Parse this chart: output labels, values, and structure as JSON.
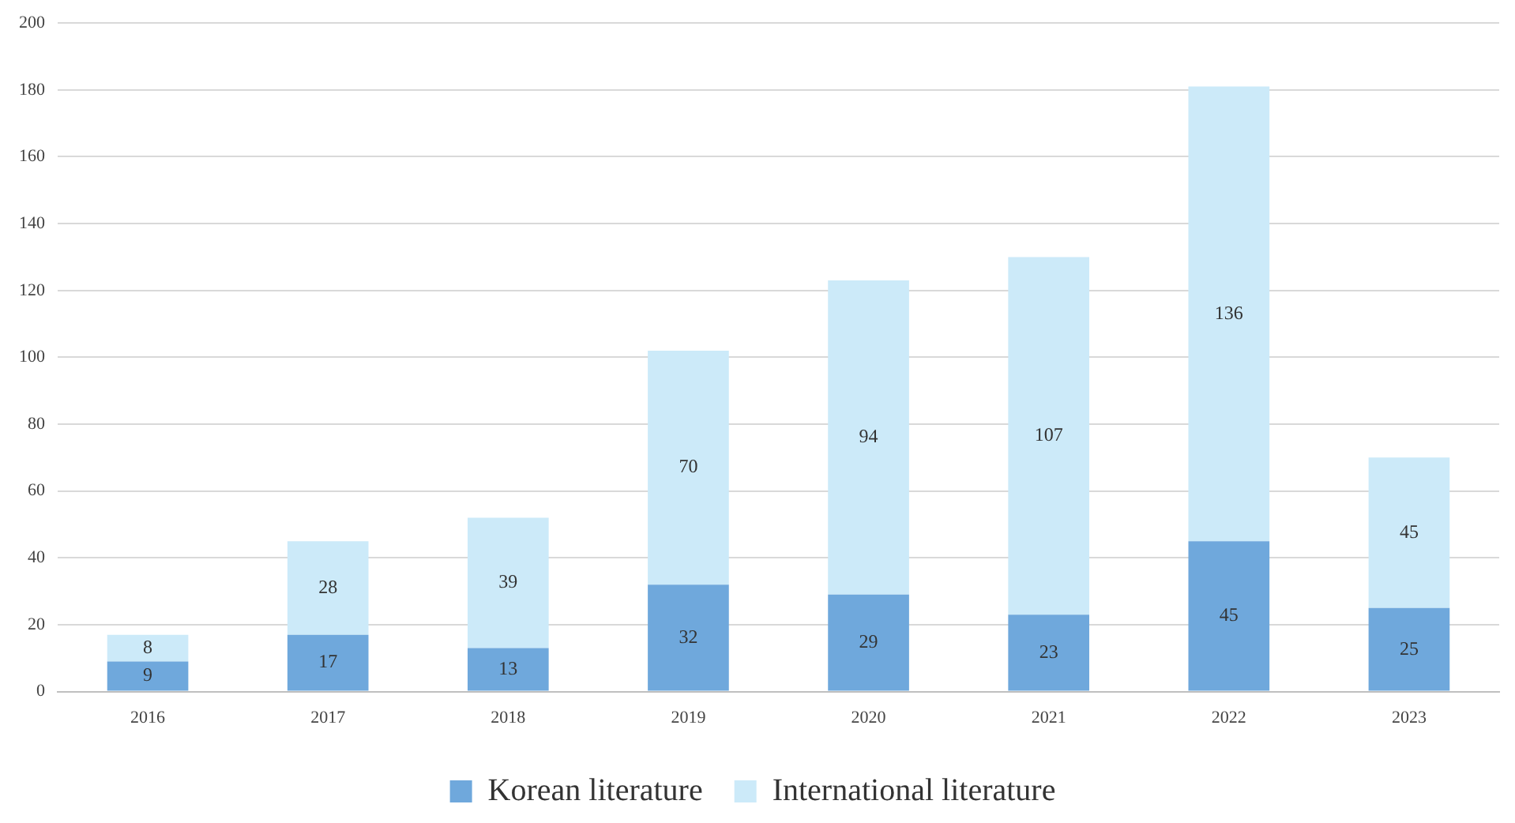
{
  "chart_data": {
    "type": "bar",
    "stacked": true,
    "categories": [
      "2016",
      "2017",
      "2018",
      "2019",
      "2020",
      "2021",
      "2022",
      "2023"
    ],
    "series": [
      {
        "name": "Korean literature",
        "color": "#6fa8dc",
        "values": [
          9,
          17,
          13,
          32,
          29,
          23,
          45,
          25
        ]
      },
      {
        "name": "International literature",
        "color": "#cceaf9",
        "values": [
          8,
          28,
          39,
          70,
          94,
          107,
          136,
          45
        ]
      }
    ],
    "ylim": [
      0,
      200
    ],
    "yticks": [
      0,
      20,
      40,
      60,
      80,
      100,
      120,
      140,
      160,
      180,
      200
    ],
    "grid": "y",
    "legend": "bottom",
    "data_labels": true
  }
}
